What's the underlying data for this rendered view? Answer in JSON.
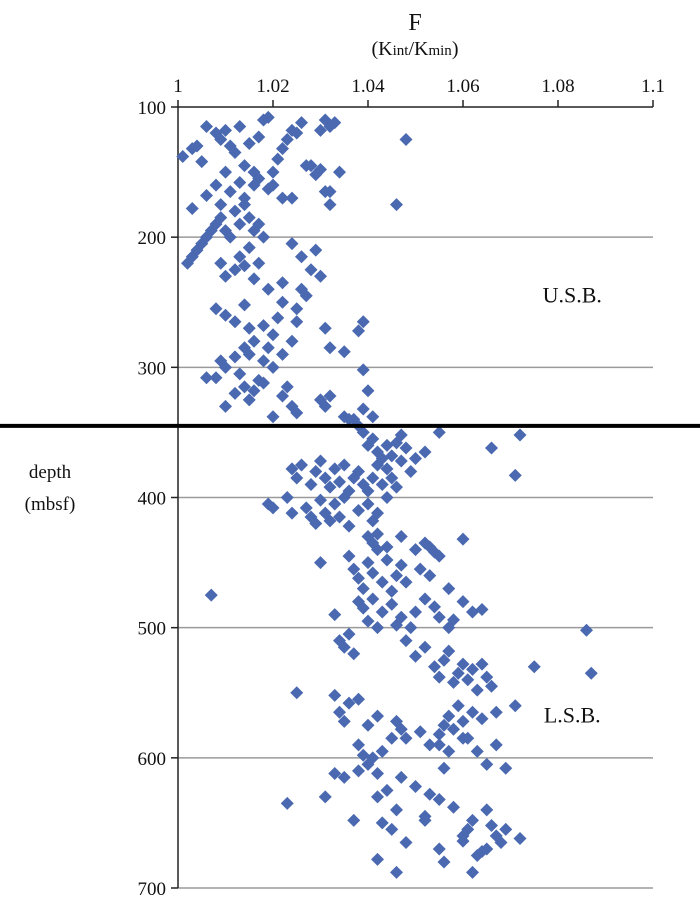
{
  "chart_data": {
    "type": "scatter",
    "title": "F",
    "subtitle_parts": [
      {
        "text": "(K",
        "sub": false
      },
      {
        "text": "int",
        "sub": true
      },
      {
        "text": "/K",
        "sub": false
      },
      {
        "text": "min",
        "sub": true
      },
      {
        "text": ")",
        "sub": false
      }
    ],
    "ylabel": [
      "depth",
      "(mbsf)"
    ],
    "xlim": [
      1,
      1.1
    ],
    "ylim": [
      100,
      700
    ],
    "y_inverted": true,
    "x_axis_position": "top",
    "x_ticks": [
      1,
      1.02,
      1.04,
      1.06,
      1.08,
      1.1
    ],
    "x_tick_labels": [
      "1",
      "1.02",
      "1.04",
      "1.06",
      "1.08",
      "1.1"
    ],
    "y_ticks": [
      100,
      200,
      300,
      400,
      500,
      600,
      700
    ],
    "y_tick_labels": [
      "100",
      "200",
      "300",
      "400",
      "500",
      "600",
      "700"
    ],
    "grid": "horizontal",
    "marker": "diamond",
    "marker_color": "#4a69b0",
    "boundary_depth": 345,
    "annotations": [
      {
        "text": "U.S.B.",
        "x": 1.083,
        "y": 250
      },
      {
        "text": "L.S.B.",
        "x": 1.083,
        "y": 573
      }
    ],
    "points": [
      [
        1.001,
        138
      ],
      [
        1.003,
        132
      ],
      [
        1.004,
        130
      ],
      [
        1.005,
        142
      ],
      [
        1.006,
        115
      ],
      [
        1.008,
        120
      ],
      [
        1.009,
        125
      ],
      [
        1.01,
        118
      ],
      [
        1.011,
        130
      ],
      [
        1.012,
        135
      ],
      [
        1.013,
        115
      ],
      [
        1.014,
        145
      ],
      [
        1.015,
        128
      ],
      [
        1.016,
        150
      ],
      [
        1.017,
        123
      ],
      [
        1.018,
        110
      ],
      [
        1.019,
        108
      ],
      [
        1.02,
        150
      ],
      [
        1.021,
        140
      ],
      [
        1.022,
        132
      ],
      [
        1.023,
        125
      ],
      [
        1.024,
        118
      ],
      [
        1.025,
        120
      ],
      [
        1.026,
        112
      ],
      [
        1.028,
        145
      ],
      [
        1.029,
        152
      ],
      [
        1.03,
        118
      ],
      [
        1.031,
        110
      ],
      [
        1.032,
        115
      ],
      [
        1.033,
        112
      ],
      [
        1.034,
        150
      ],
      [
        1.032,
        165
      ],
      [
        1.03,
        148
      ],
      [
        1.048,
        125
      ],
      [
        1.003,
        178
      ],
      [
        1.006,
        168
      ],
      [
        1.008,
        160
      ],
      [
        1.009,
        175
      ],
      [
        1.01,
        150
      ],
      [
        1.011,
        165
      ],
      [
        1.013,
        158
      ],
      [
        1.014,
        170
      ],
      [
        1.016,
        160
      ],
      [
        1.017,
        155
      ],
      [
        1.019,
        163
      ],
      [
        1.02,
        160
      ],
      [
        1.022,
        170
      ],
      [
        1.024,
        170
      ],
      [
        1.027,
        145
      ],
      [
        1.031,
        165
      ],
      [
        1.032,
        175
      ],
      [
        1.046,
        175
      ],
      [
        1.002,
        220
      ],
      [
        1.003,
        215
      ],
      [
        1.004,
        210
      ],
      [
        1.005,
        205
      ],
      [
        1.006,
        200
      ],
      [
        1.007,
        195
      ],
      [
        1.008,
        190
      ],
      [
        1.009,
        185
      ],
      [
        1.01,
        195
      ],
      [
        1.011,
        200
      ],
      [
        1.012,
        180
      ],
      [
        1.013,
        190
      ],
      [
        1.014,
        175
      ],
      [
        1.015,
        185
      ],
      [
        1.016,
        195
      ],
      [
        1.017,
        190
      ],
      [
        1.018,
        200
      ],
      [
        1.009,
        220
      ],
      [
        1.01,
        230
      ],
      [
        1.012,
        225
      ],
      [
        1.013,
        215
      ],
      [
        1.014,
        222
      ],
      [
        1.015,
        208
      ],
      [
        1.016,
        232
      ],
      [
        1.017,
        220
      ],
      [
        1.019,
        240
      ],
      [
        1.022,
        235
      ],
      [
        1.024,
        205
      ],
      [
        1.026,
        215
      ],
      [
        1.028,
        225
      ],
      [
        1.029,
        210
      ],
      [
        1.03,
        230
      ],
      [
        1.027,
        245
      ],
      [
        1.025,
        255
      ],
      [
        1.026,
        240
      ],
      [
        1.008,
        255
      ],
      [
        1.01,
        260
      ],
      [
        1.012,
        265
      ],
      [
        1.014,
        252
      ],
      [
        1.015,
        270
      ],
      [
        1.018,
        268
      ],
      [
        1.02,
        275
      ],
      [
        1.021,
        262
      ],
      [
        1.022,
        250
      ],
      [
        1.024,
        280
      ],
      [
        1.025,
        265
      ],
      [
        1.031,
        270
      ],
      [
        1.038,
        272
      ],
      [
        1.039,
        265
      ],
      [
        1.006,
        308
      ],
      [
        1.009,
        295
      ],
      [
        1.01,
        300
      ],
      [
        1.012,
        292
      ],
      [
        1.013,
        305
      ],
      [
        1.014,
        285
      ],
      [
        1.015,
        290
      ],
      [
        1.016,
        280
      ],
      [
        1.017,
        310
      ],
      [
        1.018,
        295
      ],
      [
        1.019,
        285
      ],
      [
        1.02,
        300
      ],
      [
        1.022,
        290
      ],
      [
        1.032,
        285
      ],
      [
        1.035,
        288
      ],
      [
        1.039,
        302
      ],
      [
        1.008,
        308
      ],
      [
        1.01,
        330
      ],
      [
        1.012,
        320
      ],
      [
        1.014,
        315
      ],
      [
        1.015,
        325
      ],
      [
        1.016,
        318
      ],
      [
        1.018,
        312
      ],
      [
        1.02,
        338
      ],
      [
        1.022,
        322
      ],
      [
        1.023,
        315
      ],
      [
        1.024,
        330
      ],
      [
        1.025,
        335
      ],
      [
        1.03,
        325
      ],
      [
        1.031,
        330
      ],
      [
        1.032,
        322
      ],
      [
        1.035,
        338
      ],
      [
        1.037,
        340
      ],
      [
        1.039,
        332
      ],
      [
        1.04,
        318
      ],
      [
        1.041,
        338
      ],
      [
        1.036,
        340
      ],
      [
        1.038,
        345
      ],
      [
        1.039,
        350
      ],
      [
        1.04,
        360
      ],
      [
        1.041,
        355
      ],
      [
        1.042,
        365
      ],
      [
        1.043,
        370
      ],
      [
        1.044,
        360
      ],
      [
        1.045,
        368
      ],
      [
        1.046,
        358
      ],
      [
        1.047,
        352
      ],
      [
        1.048,
        362
      ],
      [
        1.05,
        370
      ],
      [
        1.052,
        365
      ],
      [
        1.055,
        350
      ],
      [
        1.066,
        362
      ],
      [
        1.072,
        352
      ],
      [
        1.071,
        383
      ],
      [
        1.024,
        378
      ],
      [
        1.025,
        385
      ],
      [
        1.026,
        375
      ],
      [
        1.028,
        390
      ],
      [
        1.029,
        380
      ],
      [
        1.03,
        372
      ],
      [
        1.031,
        385
      ],
      [
        1.032,
        392
      ],
      [
        1.033,
        378
      ],
      [
        1.034,
        388
      ],
      [
        1.035,
        375
      ],
      [
        1.036,
        395
      ],
      [
        1.037,
        385
      ],
      [
        1.038,
        380
      ],
      [
        1.039,
        390
      ],
      [
        1.04,
        395
      ],
      [
        1.041,
        385
      ],
      [
        1.042,
        375
      ],
      [
        1.043,
        390
      ],
      [
        1.044,
        378
      ],
      [
        1.045,
        385
      ],
      [
        1.046,
        392
      ],
      [
        1.047,
        372
      ],
      [
        1.049,
        380
      ],
      [
        1.019,
        405
      ],
      [
        1.02,
        408
      ],
      [
        1.023,
        400
      ],
      [
        1.024,
        412
      ],
      [
        1.027,
        408
      ],
      [
        1.028,
        415
      ],
      [
        1.029,
        420
      ],
      [
        1.03,
        402
      ],
      [
        1.031,
        412
      ],
      [
        1.032,
        418
      ],
      [
        1.033,
        405
      ],
      [
        1.034,
        415
      ],
      [
        1.035,
        400
      ],
      [
        1.036,
        422
      ],
      [
        1.038,
        410
      ],
      [
        1.04,
        405
      ],
      [
        1.041,
        418
      ],
      [
        1.042,
        412
      ],
      [
        1.044,
        400
      ],
      [
        1.007,
        475
      ],
      [
        1.03,
        450
      ],
      [
        1.033,
        490
      ],
      [
        1.036,
        445
      ],
      [
        1.037,
        455
      ],
      [
        1.038,
        462
      ],
      [
        1.039,
        470
      ],
      [
        1.04,
        450
      ],
      [
        1.041,
        458
      ],
      [
        1.042,
        440
      ],
      [
        1.043,
        465
      ],
      [
        1.044,
        448
      ],
      [
        1.045,
        472
      ],
      [
        1.046,
        460
      ],
      [
        1.047,
        452
      ],
      [
        1.048,
        465
      ],
      [
        1.05,
        440
      ],
      [
        1.051,
        455
      ],
      [
        1.052,
        435
      ],
      [
        1.053,
        460
      ],
      [
        1.055,
        445
      ],
      [
        1.057,
        470
      ],
      [
        1.06,
        432
      ],
      [
        1.04,
        430
      ],
      [
        1.041,
        435
      ],
      [
        1.042,
        428
      ],
      [
        1.044,
        438
      ],
      [
        1.047,
        430
      ],
      [
        1.053,
        438
      ],
      [
        1.054,
        442
      ],
      [
        1.038,
        480
      ],
      [
        1.039,
        485
      ],
      [
        1.04,
        495
      ],
      [
        1.041,
        478
      ],
      [
        1.043,
        488
      ],
      [
        1.045,
        482
      ],
      [
        1.046,
        498
      ],
      [
        1.047,
        492
      ],
      [
        1.049,
        500
      ],
      [
        1.05,
        488
      ],
      [
        1.052,
        478
      ],
      [
        1.054,
        484
      ],
      [
        1.055,
        492
      ],
      [
        1.057,
        500
      ],
      [
        1.058,
        494
      ],
      [
        1.06,
        480
      ],
      [
        1.062,
        488
      ],
      [
        1.064,
        486
      ],
      [
        1.086,
        502
      ],
      [
        1.034,
        510
      ],
      [
        1.035,
        515
      ],
      [
        1.036,
        505
      ],
      [
        1.037,
        520
      ],
      [
        1.042,
        500
      ],
      [
        1.048,
        510
      ],
      [
        1.05,
        522
      ],
      [
        1.052,
        515
      ],
      [
        1.054,
        530
      ],
      [
        1.055,
        538
      ],
      [
        1.056,
        525
      ],
      [
        1.057,
        518
      ],
      [
        1.058,
        542
      ],
      [
        1.059,
        535
      ],
      [
        1.06,
        528
      ],
      [
        1.061,
        540
      ],
      [
        1.062,
        532
      ],
      [
        1.063,
        548
      ],
      [
        1.064,
        528
      ],
      [
        1.065,
        538
      ],
      [
        1.066,
        545
      ],
      [
        1.075,
        530
      ],
      [
        1.087,
        535
      ],
      [
        1.025,
        550
      ],
      [
        1.033,
        552
      ],
      [
        1.034,
        565
      ],
      [
        1.035,
        572
      ],
      [
        1.036,
        558
      ],
      [
        1.038,
        555
      ],
      [
        1.04,
        575
      ],
      [
        1.042,
        568
      ],
      [
        1.046,
        572
      ],
      [
        1.047,
        578
      ],
      [
        1.048,
        585
      ],
      [
        1.051,
        580
      ],
      [
        1.053,
        590
      ],
      [
        1.055,
        582
      ],
      [
        1.056,
        575
      ],
      [
        1.057,
        568
      ],
      [
        1.058,
        578
      ],
      [
        1.059,
        560
      ],
      [
        1.06,
        572
      ],
      [
        1.061,
        585
      ],
      [
        1.062,
        565
      ],
      [
        1.064,
        570
      ],
      [
        1.067,
        565
      ],
      [
        1.071,
        560
      ],
      [
        1.038,
        590
      ],
      [
        1.039,
        598
      ],
      [
        1.04,
        605
      ],
      [
        1.041,
        600
      ],
      [
        1.042,
        612
      ],
      [
        1.043,
        595
      ],
      [
        1.045,
        585
      ],
      [
        1.047,
        615
      ],
      [
        1.055,
        590
      ],
      [
        1.056,
        608
      ],
      [
        1.057,
        595
      ],
      [
        1.06,
        585
      ],
      [
        1.063,
        595
      ],
      [
        1.065,
        605
      ],
      [
        1.067,
        590
      ],
      [
        1.069,
        608
      ],
      [
        1.023,
        635
      ],
      [
        1.031,
        630
      ],
      [
        1.033,
        612
      ],
      [
        1.035,
        615
      ],
      [
        1.038,
        610
      ],
      [
        1.042,
        630
      ],
      [
        1.044,
        625
      ],
      [
        1.046,
        640
      ],
      [
        1.05,
        622
      ],
      [
        1.052,
        645
      ],
      [
        1.053,
        628
      ],
      [
        1.055,
        632
      ],
      [
        1.058,
        638
      ],
      [
        1.06,
        660
      ],
      [
        1.061,
        655
      ],
      [
        1.062,
        648
      ],
      [
        1.065,
        640
      ],
      [
        1.067,
        660
      ],
      [
        1.066,
        652
      ],
      [
        1.037,
        648
      ],
      [
        1.042,
        678
      ],
      [
        1.043,
        650
      ],
      [
        1.045,
        655
      ],
      [
        1.046,
        688
      ],
      [
        1.048,
        665
      ],
      [
        1.052,
        648
      ],
      [
        1.055,
        670
      ],
      [
        1.056,
        680
      ],
      [
        1.06,
        664
      ],
      [
        1.062,
        688
      ],
      [
        1.063,
        675
      ],
      [
        1.064,
        672
      ],
      [
        1.065,
        670
      ],
      [
        1.068,
        665
      ],
      [
        1.072,
        662
      ],
      [
        1.069,
        655
      ]
    ]
  }
}
